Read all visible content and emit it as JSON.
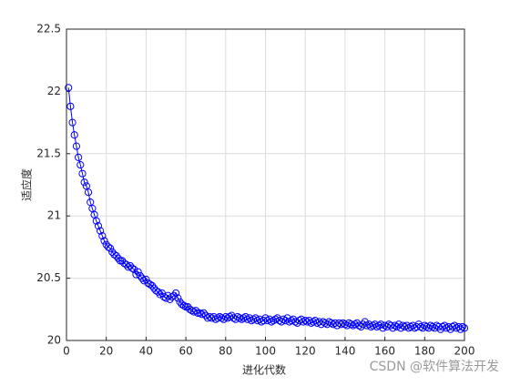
{
  "chart_data": {
    "type": "line",
    "xlabel": "进化代数",
    "ylabel": "适应度",
    "watermark": "CSDN @软件算法开发",
    "xlim": [
      0,
      200
    ],
    "xticks": [
      0,
      20,
      40,
      60,
      80,
      100,
      120,
      140,
      160,
      180,
      200
    ],
    "ylim": [
      20,
      22.5
    ],
    "yticks": [
      20,
      20.5,
      21,
      21.5,
      22,
      22.5
    ],
    "grid": true,
    "marker": "o",
    "x": [
      1,
      2,
      3,
      4,
      5,
      6,
      7,
      8,
      9,
      10,
      11,
      12,
      13,
      14,
      15,
      16,
      17,
      18,
      19,
      20,
      21,
      22,
      23,
      24,
      25,
      26,
      27,
      28,
      29,
      30,
      31,
      32,
      33,
      34,
      35,
      36,
      37,
      38,
      39,
      40,
      41,
      42,
      43,
      44,
      45,
      46,
      47,
      48,
      49,
      50,
      51,
      52,
      53,
      54,
      55,
      56,
      57,
      58,
      59,
      60,
      61,
      62,
      63,
      64,
      65,
      66,
      67,
      68,
      69,
      70,
      71,
      72,
      73,
      74,
      75,
      76,
      77,
      78,
      79,
      80,
      81,
      82,
      83,
      84,
      85,
      86,
      87,
      88,
      89,
      90,
      91,
      92,
      93,
      94,
      95,
      96,
      97,
      98,
      99,
      100,
      101,
      102,
      103,
      104,
      105,
      106,
      107,
      108,
      109,
      110,
      111,
      112,
      113,
      114,
      115,
      116,
      117,
      118,
      119,
      120,
      121,
      122,
      123,
      124,
      125,
      126,
      127,
      128,
      129,
      130,
      131,
      132,
      133,
      134,
      135,
      136,
      137,
      138,
      139,
      140,
      141,
      142,
      143,
      144,
      145,
      146,
      147,
      148,
      149,
      150,
      151,
      152,
      153,
      154,
      155,
      156,
      157,
      158,
      159,
      160,
      161,
      162,
      163,
      164,
      165,
      166,
      167,
      168,
      169,
      170,
      171,
      172,
      173,
      174,
      175,
      176,
      177,
      178,
      179,
      180,
      181,
      182,
      183,
      184,
      185,
      186,
      187,
      188,
      189,
      190,
      191,
      192,
      193,
      194,
      195,
      196,
      197,
      198,
      199,
      200
    ],
    "series": [
      {
        "color": "#0000ff",
        "values": [
          22.03,
          21.88,
          21.75,
          21.65,
          21.56,
          21.47,
          21.41,
          21.34,
          21.27,
          21.24,
          21.19,
          21.11,
          21.06,
          21.01,
          20.96,
          20.92,
          20.88,
          20.84,
          20.8,
          20.77,
          20.75,
          20.74,
          20.71,
          20.69,
          20.68,
          20.66,
          20.64,
          20.64,
          20.62,
          20.61,
          20.59,
          20.6,
          20.58,
          20.57,
          20.53,
          20.55,
          20.52,
          20.5,
          20.48,
          20.49,
          20.46,
          20.45,
          20.44,
          20.42,
          20.4,
          20.39,
          20.37,
          20.38,
          20.35,
          20.34,
          20.36,
          20.33,
          20.35,
          20.36,
          20.38,
          20.34,
          20.31,
          20.29,
          20.28,
          20.27,
          20.27,
          20.25,
          20.24,
          20.23,
          20.24,
          20.22,
          20.22,
          20.21,
          20.22,
          20.2,
          20.18,
          20.19,
          20.18,
          20.19,
          20.17,
          20.18,
          20.19,
          20.18,
          20.17,
          20.19,
          20.18,
          20.19,
          20.2,
          20.18,
          20.17,
          20.19,
          20.18,
          20.17,
          20.18,
          20.19,
          20.17,
          20.18,
          20.16,
          20.17,
          20.18,
          20.16,
          20.17,
          20.15,
          20.16,
          20.18,
          20.16,
          20.17,
          20.15,
          20.16,
          20.17,
          20.18,
          20.16,
          20.15,
          20.17,
          20.16,
          20.18,
          20.15,
          20.16,
          20.17,
          20.15,
          20.14,
          20.16,
          20.17,
          20.15,
          20.16,
          20.15,
          20.16,
          20.14,
          20.15,
          20.16,
          20.14,
          20.15,
          20.13,
          20.15,
          20.14,
          20.13,
          20.15,
          20.14,
          20.13,
          20.14,
          20.12,
          20.14,
          20.13,
          20.14,
          20.13,
          20.12,
          20.14,
          20.13,
          20.12,
          20.13,
          20.14,
          20.12,
          20.11,
          20.13,
          20.15,
          20.12,
          20.13,
          20.11,
          20.12,
          20.13,
          20.11,
          20.12,
          20.13,
          20.1,
          20.12,
          20.11,
          20.13,
          20.12,
          20.1,
          20.12,
          20.11,
          20.13,
          20.1,
          20.12,
          20.11,
          20.12,
          20.1,
          20.11,
          20.12,
          20.1,
          20.11,
          20.13,
          20.11,
          20.1,
          20.12,
          20.11,
          20.1,
          20.12,
          20.11,
          20.1,
          20.12,
          20.11,
          20.09,
          20.11,
          20.12,
          20.1,
          20.11,
          20.09,
          20.11,
          20.12,
          20.1,
          20.11,
          20.09,
          20.11,
          20.1
        ]
      }
    ]
  }
}
